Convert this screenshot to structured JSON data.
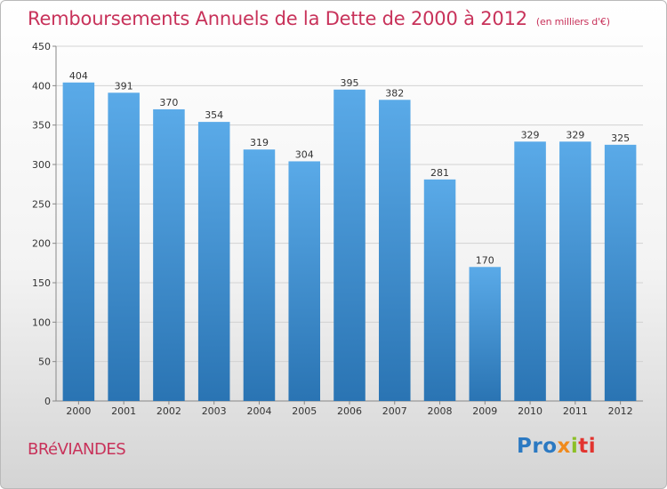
{
  "chart_data": {
    "type": "bar",
    "title": "Remboursements Annuels de la Dette de 2000 à 2012",
    "subtitle": "(en milliers d'€)",
    "categories": [
      "2000",
      "2001",
      "2002",
      "2003",
      "2004",
      "2005",
      "2006",
      "2007",
      "2008",
      "2009",
      "2010",
      "2011",
      "2012"
    ],
    "values": [
      404,
      391,
      370,
      354,
      319,
      304,
      395,
      382,
      281,
      170,
      329,
      329,
      325
    ],
    "yticks": [
      0,
      50,
      100,
      150,
      200,
      250,
      300,
      350,
      400,
      450
    ],
    "ylim": [
      0,
      450
    ],
    "xlabel": "",
    "ylabel": "",
    "grid": true,
    "bar_color_top": "#5aaae8",
    "bar_color_bottom": "#2a74b3"
  },
  "footer": {
    "city": "BRéVIANDES",
    "logo": [
      "Pro",
      "x",
      "i",
      "ti"
    ]
  },
  "colors": {
    "title": "#c8325a",
    "grid": "#d2d2d2"
  }
}
